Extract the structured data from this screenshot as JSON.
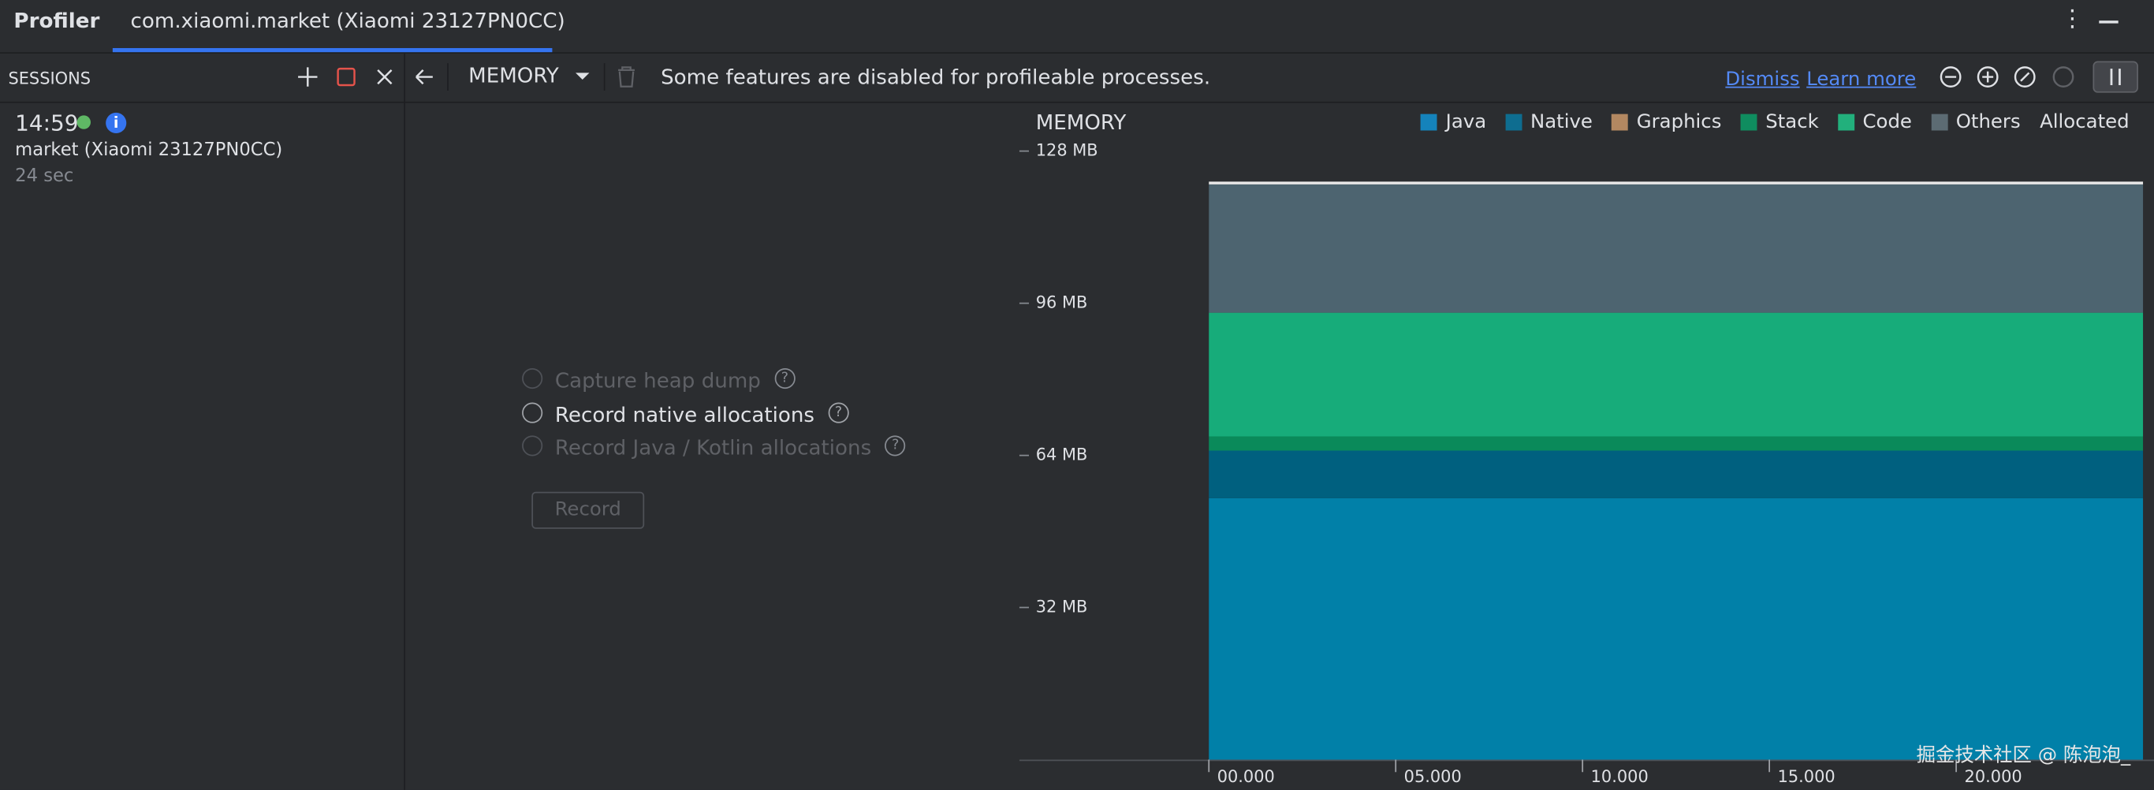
{
  "header": {
    "app": "Profiler",
    "tab": "com.xiaomi.market (Xiaomi 23127PN0CC)"
  },
  "toolbar": {
    "sessions_label": "SESSIONS",
    "profiler_type": "MEMORY",
    "banner": "Some features are disabled for profileable processes.",
    "dismiss": "Dismiss",
    "learn_more": "Learn more"
  },
  "session": {
    "time": "14:59",
    "name": "market (Xiaomi 23127PN0CC)",
    "duration": "24 sec"
  },
  "recording": {
    "options": [
      {
        "label": "Capture heap dump",
        "enabled": false
      },
      {
        "label": "Record native allocations",
        "enabled": true
      },
      {
        "label": "Record Java / Kotlin allocations",
        "enabled": false
      }
    ],
    "button": "Record"
  },
  "chart_data": {
    "type": "stacked_area",
    "title": "MEMORY",
    "legend": "top-right",
    "legend_extra": "Allocated",
    "x": [
      0,
      25
    ],
    "series": [
      {
        "name": "Java",
        "color": "#0180a8",
        "swatch": "#1583bb",
        "values": [
          55,
          55
        ]
      },
      {
        "name": "Native",
        "color": "#00607f",
        "swatch": "#0e6d90",
        "values": [
          10,
          10
        ]
      },
      {
        "name": "Graphics",
        "color": "#b38861",
        "swatch": "#b38861",
        "values": [
          0,
          0
        ]
      },
      {
        "name": "Stack",
        "color": "#0a8a5a",
        "swatch": "#0f8d5f",
        "values": [
          3,
          3
        ]
      },
      {
        "name": "Code",
        "color": "#17ac7a",
        "swatch": "#22b07c",
        "values": [
          26,
          26
        ]
      },
      {
        "name": "Others",
        "color": "#4d6470",
        "swatch": "#5c6b73",
        "values": [
          27,
          27
        ]
      }
    ],
    "xlim": [
      0,
      25
    ],
    "xticks": [
      {
        "value": 0,
        "label": "00.000"
      },
      {
        "value": 5,
        "label": "05.000"
      },
      {
        "value": 10,
        "label": "10.000"
      },
      {
        "value": 15,
        "label": "15.000"
      },
      {
        "value": 20,
        "label": "20.000"
      }
    ],
    "ylim": [
      0,
      128
    ],
    "yticks": [
      {
        "value": 32,
        "label": "32 MB"
      },
      {
        "value": 64,
        "label": "64 MB"
      },
      {
        "value": 96,
        "label": "96 MB"
      },
      {
        "value": 128,
        "label": "128 MB"
      }
    ]
  },
  "watermark": "掘金技术社区 @ 陈泡泡_"
}
